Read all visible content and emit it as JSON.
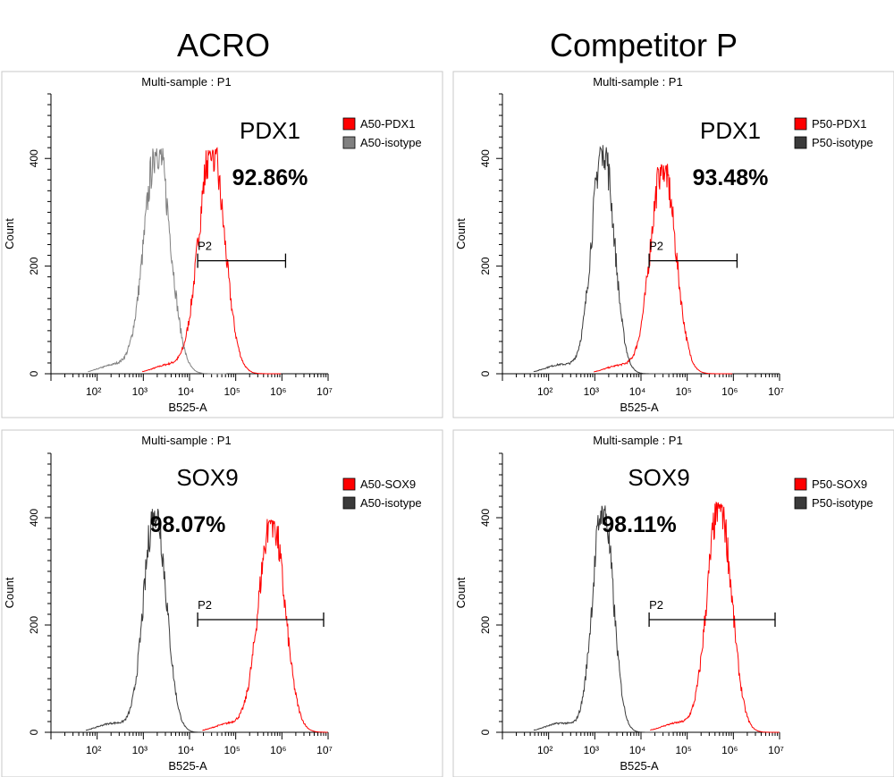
{
  "columns": [
    {
      "title": "ACRO"
    },
    {
      "title": "Competitor P"
    }
  ],
  "colors": {
    "sample": "#ff0000",
    "isotype_acro_pdx1": "#808080",
    "isotype": "#3a3a3a",
    "frame": "#c8c8c8",
    "axis": "#000000"
  },
  "chart_data": [
    {
      "type": "line",
      "title": "Multi-sample : P1",
      "xlabel": "B525-A",
      "ylabel": "Count",
      "x_scale": "log",
      "xlim": [
        10,
        10000000
      ],
      "ylim": [
        0,
        520
      ],
      "x_ticks": [
        "10²",
        "10³",
        "10⁴",
        "10⁵",
        "10⁶",
        "10⁷"
      ],
      "y_ticks": [
        "0",
        "200",
        "400"
      ],
      "marker": "PDX1",
      "percent": "92.86%",
      "gate": {
        "label": "P2",
        "from": 15000,
        "to": 1200000,
        "y": 210
      },
      "legend": [
        "A50-PDX1",
        "A50-isotype"
      ],
      "series": [
        {
          "name": "A50-PDX1",
          "color": "#ff0000",
          "peak_x": 30000,
          "peak_y": 420,
          "width_decades": 0.28
        },
        {
          "name": "A50-isotype",
          "color": "#808080",
          "peak_x": 2000,
          "peak_y": 420,
          "width_decades": 0.28
        }
      ]
    },
    {
      "type": "line",
      "title": "Multi-sample : P1",
      "xlabel": "B525-A",
      "ylabel": "Count",
      "x_scale": "log",
      "xlim": [
        10,
        10000000
      ],
      "ylim": [
        0,
        520
      ],
      "x_ticks": [
        "10²",
        "10³",
        "10⁴",
        "10⁵",
        "10⁶",
        "10⁷"
      ],
      "y_ticks": [
        "0",
        "200",
        "400"
      ],
      "marker": "PDX1",
      "percent": "93.48%",
      "gate": {
        "label": "P2",
        "from": 15000,
        "to": 1200000,
        "y": 210
      },
      "legend": [
        "P50-PDX1",
        "P50-isotype"
      ],
      "series": [
        {
          "name": "P50-PDX1",
          "color": "#ff0000",
          "peak_x": 30000,
          "peak_y": 390,
          "width_decades": 0.27
        },
        {
          "name": "P50-isotype",
          "color": "#3a3a3a",
          "peak_x": 1500,
          "peak_y": 425,
          "width_decades": 0.24
        }
      ]
    },
    {
      "type": "line",
      "title": "Multi-sample : P1",
      "xlabel": "B525-A",
      "ylabel": "Count",
      "x_scale": "log",
      "xlim": [
        10,
        10000000
      ],
      "ylim": [
        0,
        520
      ],
      "x_ticks": [
        "10²",
        "10³",
        "10⁴",
        "10⁵",
        "10⁶",
        "10⁷"
      ],
      "y_ticks": [
        "0",
        "200",
        "400"
      ],
      "marker": "SOX9",
      "percent": "98.07%",
      "gate": {
        "label": "P2",
        "from": 15000,
        "to": 8000000,
        "y": 210
      },
      "legend": [
        "A50-SOX9",
        "A50-isotype"
      ],
      "series": [
        {
          "name": "A50-SOX9",
          "color": "#ff0000",
          "peak_x": 600000,
          "peak_y": 400,
          "width_decades": 0.28
        },
        {
          "name": "A50-isotype",
          "color": "#3a3a3a",
          "peak_x": 1800,
          "peak_y": 420,
          "width_decades": 0.24
        }
      ]
    },
    {
      "type": "line",
      "title": "Multi-sample : P1",
      "xlabel": "B525-A",
      "ylabel": "Count",
      "x_scale": "log",
      "xlim": [
        10,
        10000000
      ],
      "ylim": [
        0,
        520
      ],
      "x_ticks": [
        "10²",
        "10³",
        "10⁴",
        "10⁵",
        "10⁶",
        "10⁷"
      ],
      "y_ticks": [
        "0",
        "200",
        "400"
      ],
      "marker": "SOX9",
      "percent": "98.11%",
      "gate": {
        "label": "P2",
        "from": 15000,
        "to": 8000000,
        "y": 210
      },
      "legend": [
        "P50-SOX9",
        "P50-isotype"
      ],
      "series": [
        {
          "name": "P50-SOX9",
          "color": "#ff0000",
          "peak_x": 500000,
          "peak_y": 430,
          "width_decades": 0.26
        },
        {
          "name": "P50-isotype",
          "color": "#3a3a3a",
          "peak_x": 1500,
          "peak_y": 425,
          "width_decades": 0.22
        }
      ]
    }
  ]
}
